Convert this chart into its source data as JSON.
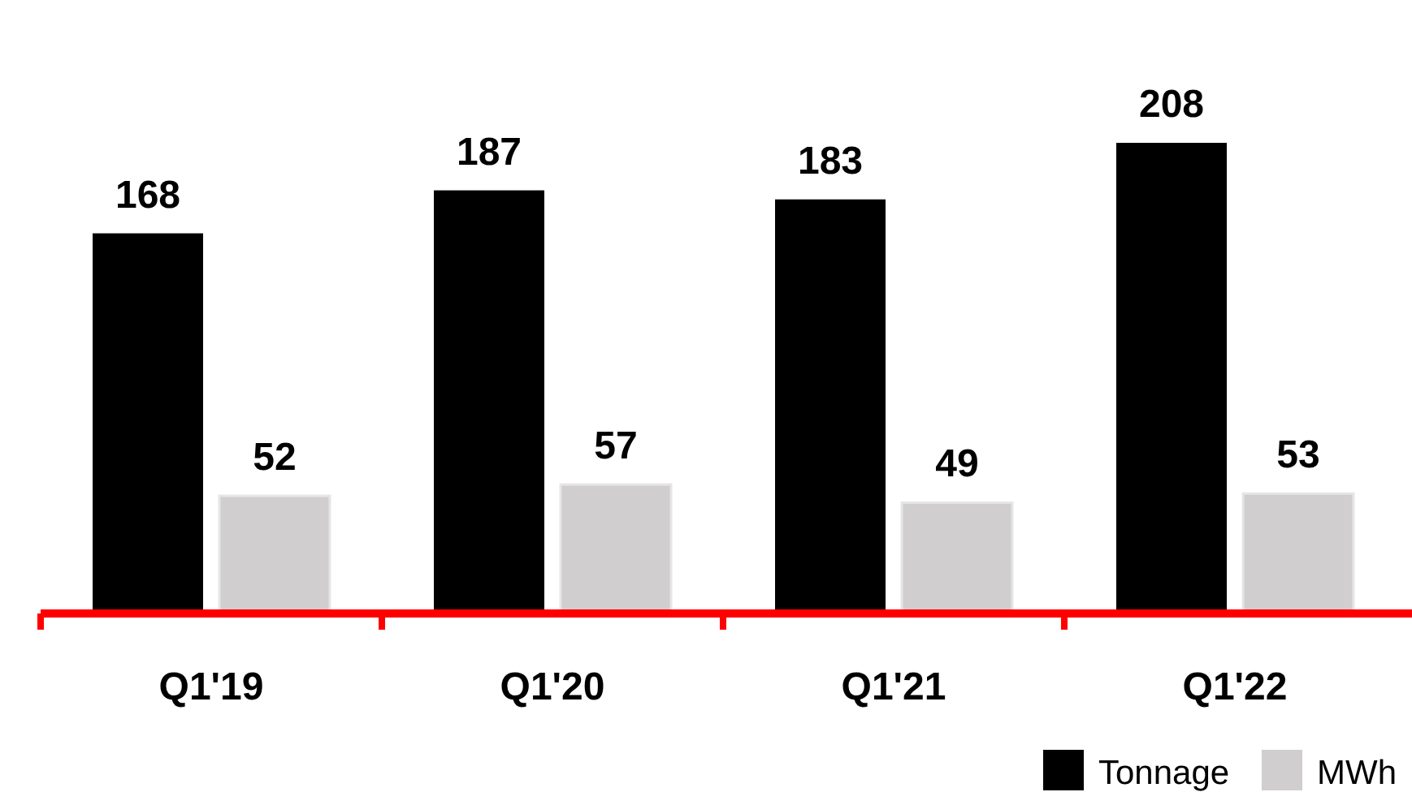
{
  "chart_data": {
    "type": "bar",
    "categories": [
      "Q1'19",
      "Q1'20",
      "Q1'21",
      "Q1'22"
    ],
    "series": [
      {
        "name": "Tonnage",
        "color": "#000000",
        "values": [
          168,
          187,
          183,
          208
        ]
      },
      {
        "name": "MWh",
        "color": "#d0cece",
        "values": [
          52,
          57,
          49,
          53
        ]
      }
    ],
    "data_labels": true,
    "legend": "bottom right"
  }
}
